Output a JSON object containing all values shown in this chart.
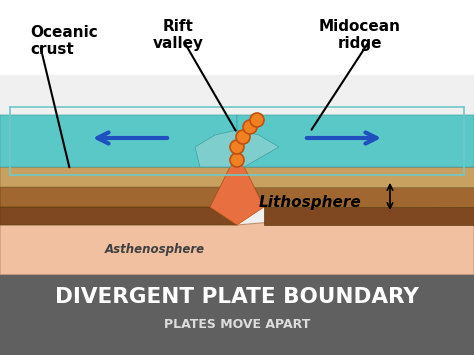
{
  "title": "DIVERGENT PLATE BOUNDARY",
  "subtitle": "PLATES MOVE APART",
  "labels": {
    "oceanic_crust": "Oceanic\ncrust",
    "rift_valley": "Rift\nvalley",
    "midocean_ridge": "Midocean\nridge",
    "lithosphere": "Lithosphere"
  },
  "colors": {
    "background": "#ffffff",
    "ocean_water": "#5bc8c8",
    "ocean_water_dark": "#3aaeae",
    "ocean_floor": "#7ecece",
    "crust_top": "#c8a060",
    "crust_mid": "#a06830",
    "crust_dark": "#804820",
    "mantle": "#e8a080",
    "mantle_light": "#f0c0a0",
    "magma": "#e87040",
    "ocean_glass": "#a8e8e8",
    "ocean_glass_border": "#70c8c8",
    "arrow_blue": "#2050c0",
    "arrow_outline": "#103080",
    "dot_orange": "#f08020",
    "dot_outline": "#c05010",
    "label_text": "#000000",
    "bottom_bar": "#606060",
    "bottom_text": "#ffffff",
    "bottom_text2": "#dddddd",
    "line_arrow": "#000000"
  },
  "figsize": [
    4.74,
    3.55
  ],
  "dpi": 100
}
